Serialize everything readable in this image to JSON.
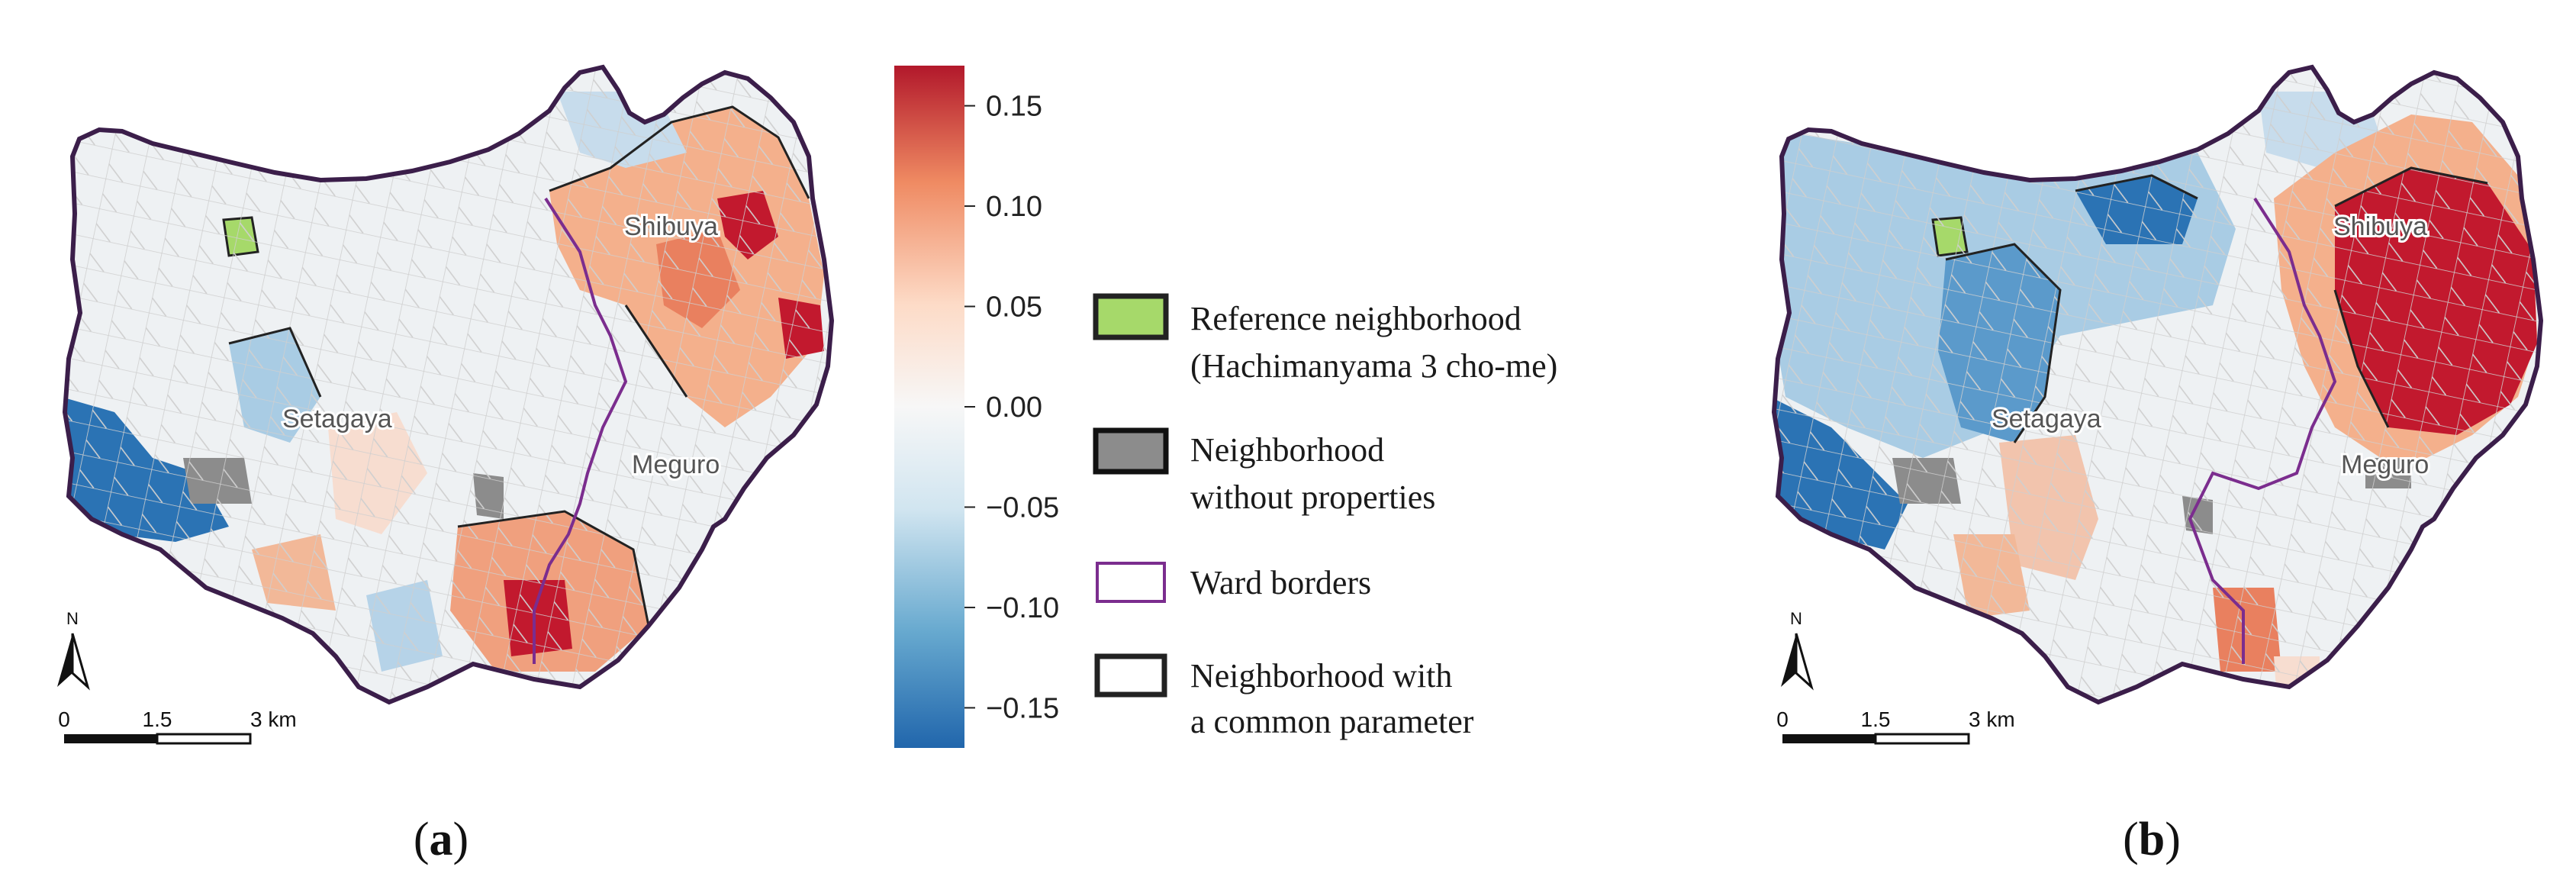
{
  "colorbar": {
    "ticks": [
      {
        "label": "0.15",
        "value": 0.15
      },
      {
        "label": "0.10",
        "value": 0.1
      },
      {
        "label": "0.05",
        "value": 0.05
      },
      {
        "label": "0.00",
        "value": 0.0
      },
      {
        "label": "−0.05",
        "value": -0.05
      },
      {
        "label": "−0.10",
        "value": -0.1
      },
      {
        "label": "−0.15",
        "value": -0.15
      }
    ],
    "range": [
      -0.17,
      0.17
    ],
    "colors": [
      "#2166ac",
      "#67a9cf",
      "#d1e5f0",
      "#f7f7f7",
      "#fddbc7",
      "#ef8a62",
      "#b2182b"
    ]
  },
  "legend": {
    "reference": {
      "line1": "Reference neighborhood",
      "line2": "(Hachimanyama 3 cho-me)",
      "color": "#a6d96a"
    },
    "no_properties": {
      "line1": "Neighborhood",
      "line2": "without properties",
      "color": "#8c8c8c"
    },
    "ward_borders": {
      "line1": "Ward borders",
      "color": "#7b2d8e"
    },
    "common_param": {
      "line1": "Neighborhood with",
      "line2": "a common parameter",
      "color": "#222222"
    }
  },
  "map_a": {
    "labels": {
      "shibuya": "Shibuya",
      "setagaya": "Setagaya",
      "meguro": "Meguro"
    },
    "north": "N",
    "scale": {
      "t0": "0",
      "t1": "1.5",
      "t2": "3 km"
    }
  },
  "map_b": {
    "labels": {
      "shibuya": "Shibuya",
      "setagaya": "Setagaya",
      "meguro": "Meguro"
    },
    "north": "N",
    "scale": {
      "t0": "0",
      "t1": "1.5",
      "t2": "3 km"
    }
  },
  "panels": {
    "a": {
      "open": "(",
      "letter": "a",
      "close": ")"
    },
    "b": {
      "open": "(",
      "letter": "b",
      "close": ")"
    }
  }
}
